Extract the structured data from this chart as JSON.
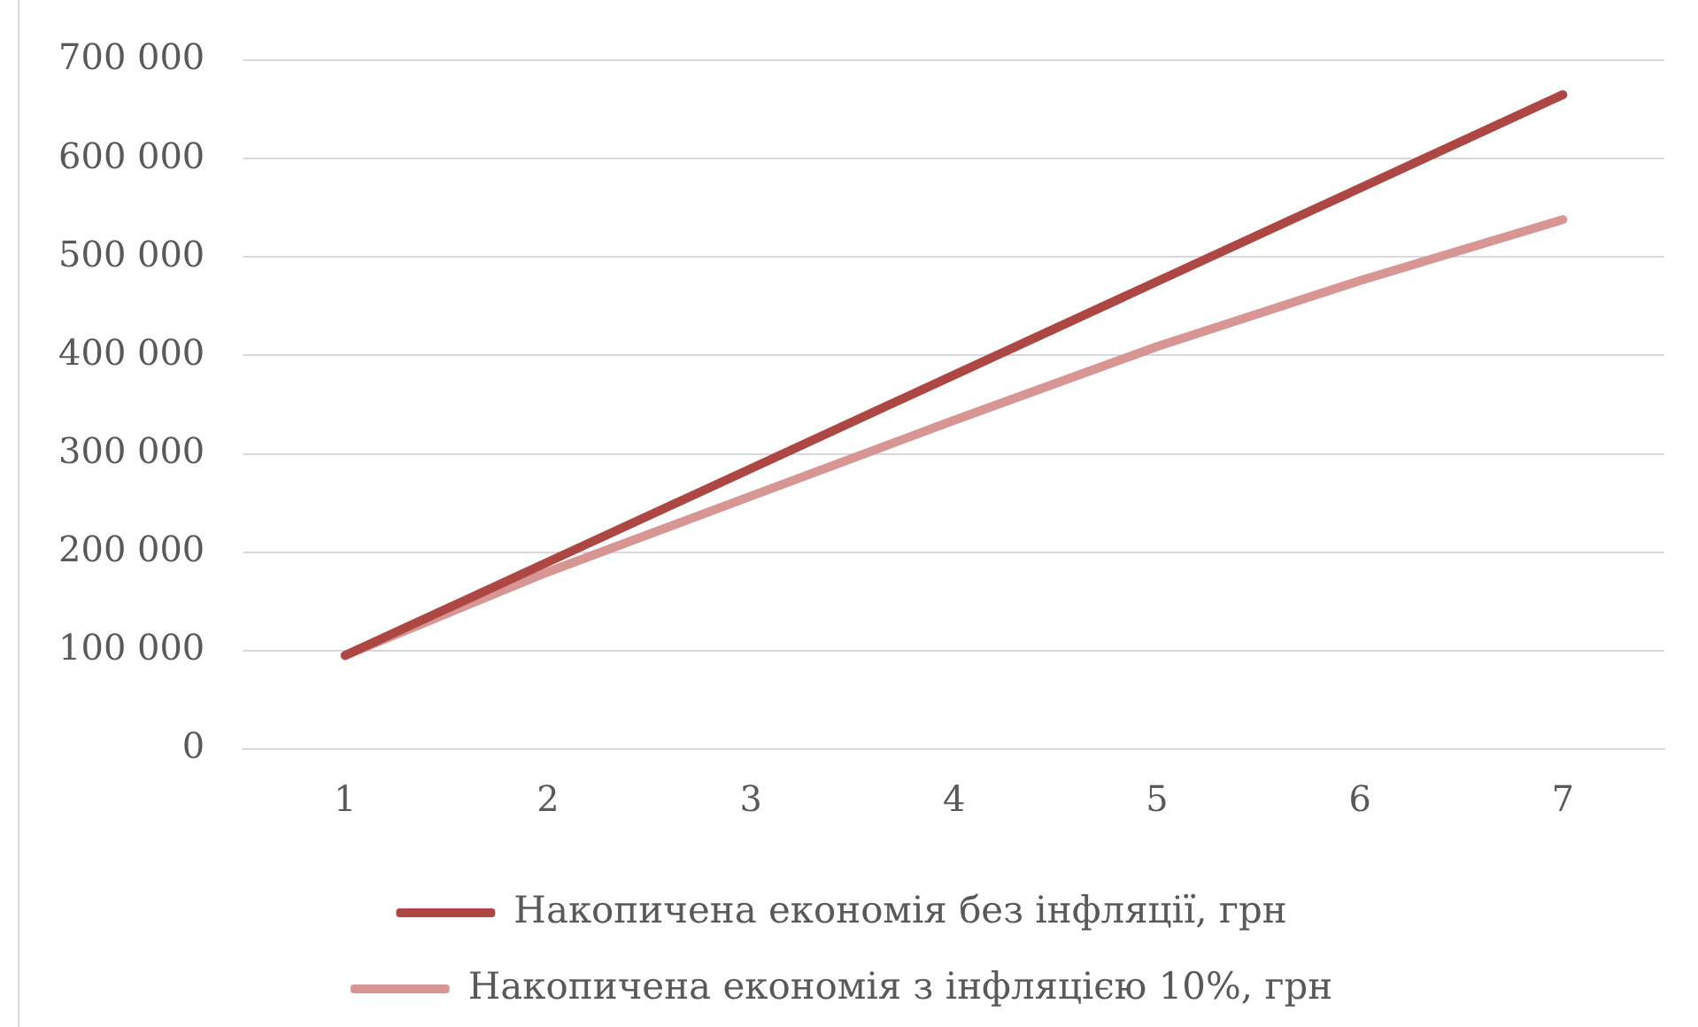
{
  "chart_data": {
    "type": "line",
    "categories": [
      "1",
      "2",
      "3",
      "4",
      "5",
      "6",
      "7"
    ],
    "series": [
      {
        "name": "Накопичена економія без інфляції, грн",
        "color": "#ad4744",
        "values": [
          95000,
          190000,
          285000,
          380000,
          475000,
          570000,
          665000
        ]
      },
      {
        "name": "Накопичена економія з інфляцією 10%, грн",
        "color": "#d79593",
        "values": [
          95000,
          180000,
          257000,
          334000,
          409000,
          476000,
          538000
        ]
      }
    ],
    "ylim": [
      0,
      700000
    ],
    "yticks": [
      0,
      {
        "value": 100000,
        "label": "100 000"
      },
      {
        "value": 200000,
        "label": "200 000"
      },
      {
        "value": 300000,
        "label": "300 000"
      },
      {
        "value": 400000,
        "label": "400 000"
      },
      {
        "value": 500000,
        "label": "500 000"
      },
      {
        "value": 600000,
        "label": "600 000"
      },
      {
        "value": 700000,
        "label": "700 000"
      }
    ],
    "grid": "y",
    "legend": "bottom",
    "marker": "none",
    "line_style": "solid"
  }
}
